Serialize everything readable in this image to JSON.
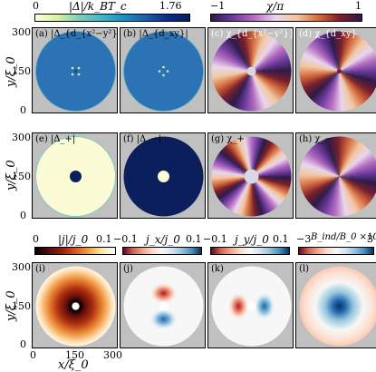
{
  "colorbars": {
    "gap": {
      "min": "0",
      "label": "|Δ|/k_BT_c",
      "max": "1.76"
    },
    "phase": {
      "min": "−1",
      "label": "χ/π",
      "max": "1"
    },
    "current": {
      "min": "0",
      "label": "|j|/j_0",
      "max": "0.1"
    },
    "jx": {
      "min": "−0.1",
      "label": "j_x/j_0",
      "max": "0.1"
    },
    "jy": {
      "min": "−0.1",
      "label": "j_y/j_0",
      "max": "0.1"
    },
    "field": {
      "min": "−3",
      "label": "B_ind/B_0 ×10^4",
      "max": "3"
    }
  },
  "panels": {
    "a": "(a) |Δ_{d_{x²−y²}}|",
    "b": "(b) |Δ_{d_xy}|",
    "c": "(c) χ_{d_{x²−y²}}",
    "d": "(d) χ_{d_xy}",
    "e": "(e) |Δ_+|",
    "f": "(f) |Δ_−|",
    "g": "(g) χ_+",
    "h": "(h) χ_−",
    "i": "(i)",
    "j": "(j)",
    "k": "(k)",
    "l": "(l)"
  },
  "axes": {
    "ylabel": "y/ξ_0",
    "xlabel": "x/ξ_0",
    "yticks": [
      "300",
      "150",
      "0"
    ],
    "xticks": [
      "0",
      "150",
      "300"
    ]
  },
  "colors": {
    "gap_bg": "#2c73b5",
    "gap_dark": "#0b1f5c",
    "gap_light": "#fbfbd6",
    "panel_bg": "#c0c0c0"
  }
}
